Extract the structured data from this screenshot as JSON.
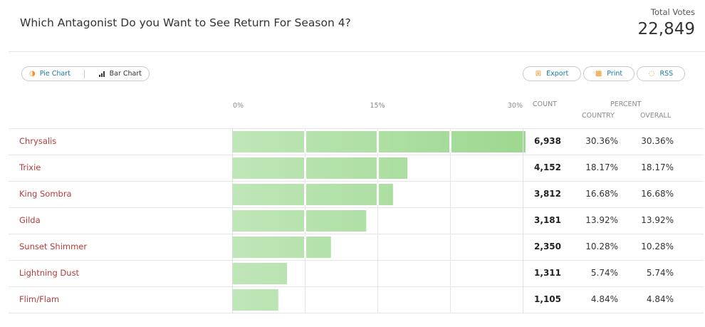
{
  "header": {
    "title": "Which Antagonist Do you Want to See Return For Season 4?",
    "total_label": "Total Votes",
    "total_value": "22,849"
  },
  "toolbar": {
    "pie_label": "Pie Chart",
    "bar_label": "Bar Chart",
    "export_label": "Export",
    "print_label": "Print",
    "rss_label": "RSS"
  },
  "columns": {
    "count": "COUNT",
    "percent": "PERCENT",
    "country": "COUNTRY",
    "overall": "OVERALL"
  },
  "colors": {
    "bar_light": "#bfe6b8",
    "bar_dark": "#9dd890",
    "name": "#b23b3b",
    "accent": "#1a7aa0",
    "icon": "#f0931e"
  },
  "chart_data": {
    "type": "bar",
    "orientation": "horizontal",
    "xlim": [
      0,
      30
    ],
    "xticks": [
      "0%",
      "15%",
      "30%"
    ],
    "categories": [
      "Chrysalis",
      "Trixie",
      "King Sombra",
      "Gilda",
      "Sunset Shimmer",
      "Lightning Dust",
      "Flim/Flam"
    ],
    "values": [
      30.36,
      18.17,
      16.68,
      13.92,
      10.28,
      5.74,
      4.84
    ],
    "counts": [
      "6,938",
      "4,152",
      "3,812",
      "3,181",
      "2,350",
      "1,311",
      "1,105"
    ],
    "country": [
      "30.36%",
      "18.17%",
      "16.68%",
      "13.92%",
      "10.28%",
      "5.74%",
      "4.84%"
    ],
    "overall": [
      "30.36%",
      "18.17%",
      "16.68%",
      "13.92%",
      "10.28%",
      "5.74%",
      "4.84%"
    ]
  }
}
